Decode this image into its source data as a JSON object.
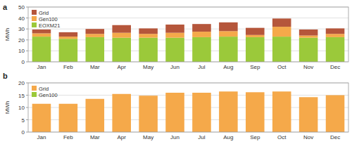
{
  "chart_data": [
    {
      "type": "bar",
      "title": "a",
      "ylabel": "MWh",
      "stacked": true,
      "grid": true,
      "legend": "top-left",
      "categories": [
        "Jan",
        "Feb",
        "Mar",
        "Apr",
        "May",
        "Jun",
        "Jul",
        "Aug",
        "Sep",
        "Oct",
        "Nov",
        "Dec"
      ],
      "ylim": [
        0,
        50
      ],
      "yticks": [
        0,
        10,
        20,
        30,
        40,
        50
      ],
      "series": [
        {
          "name": "EOXM21",
          "color": "#9bc93a",
          "values": [
            23,
            21,
            22.5,
            22,
            22,
            22,
            22.5,
            23,
            22.5,
            23,
            22,
            22.5
          ]
        },
        {
          "name": "Gen100",
          "color": "#f5a94a",
          "values": [
            3,
            2,
            3,
            4.5,
            3.5,
            4.5,
            5,
            5,
            2,
            9,
            2,
            3
          ]
        },
        {
          "name": "Grid",
          "color": "#b5563b",
          "values": [
            3.5,
            4,
            4.5,
            7,
            5,
            7.5,
            7,
            8,
            6.5,
            7.5,
            5.5,
            5
          ]
        }
      ]
    },
    {
      "type": "bar",
      "title": "b",
      "ylabel": "MWh",
      "stacked": true,
      "grid": true,
      "legend": "top-left",
      "categories": [
        "Jan",
        "Feb",
        "Mar",
        "Apr",
        "May",
        "Jun",
        "Jul",
        "Aug",
        "Sep",
        "Oct",
        "Nov",
        "Dec"
      ],
      "ylim": [
        0,
        20
      ],
      "yticks": [
        0,
        5,
        10,
        15,
        20
      ],
      "series": [
        {
          "name": "Gen100",
          "color": "#9bc93a",
          "values": [
            0,
            0,
            0,
            0,
            0,
            0,
            0,
            0,
            0,
            0,
            0,
            0
          ]
        },
        {
          "name": "Grid",
          "color": "#f5a94a",
          "values": [
            11.5,
            11.5,
            13.5,
            15.5,
            14.8,
            16,
            16,
            16.5,
            16.2,
            16.5,
            14.2,
            15
          ]
        }
      ]
    }
  ]
}
